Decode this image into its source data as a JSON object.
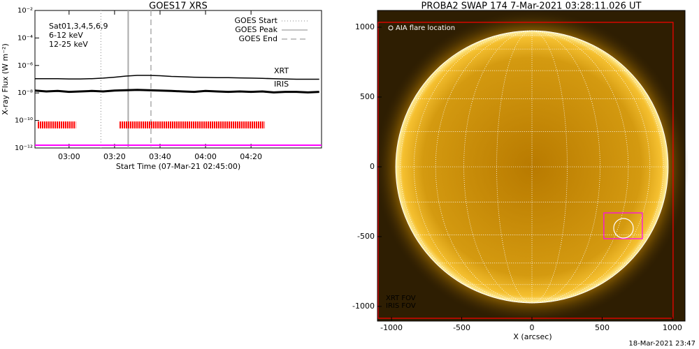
{
  "chart_data": [
    {
      "type": "goes-lightcurve",
      "title": "GOES17 XRS",
      "ylabel": "X-ray Flux (W m⁻²)",
      "xlabel": "Start Time (07-Mar-21 02:45:00)",
      "log_y": true,
      "ylim": [
        1e-12,
        0.01
      ],
      "yticks": [
        {
          "value": 1e-12,
          "label": "10⁻¹²"
        },
        {
          "value": 1e-10,
          "label": "10⁻¹⁰"
        },
        {
          "value": 1e-08,
          "label": "10⁻⁸"
        },
        {
          "value": 1e-06,
          "label": "10⁻⁶"
        },
        {
          "value": 0.0001,
          "label": "10⁻⁴"
        },
        {
          "value": 0.01,
          "label": "10⁻²"
        }
      ],
      "xlim": [
        "02:45",
        "04:51"
      ],
      "xticks": [
        "03:00",
        "03:20",
        "03:40",
        "04:00",
        "04:20"
      ],
      "x": [
        "02:45",
        "02:50",
        "02:55",
        "03:00",
        "03:05",
        "03:10",
        "03:15",
        "03:20",
        "03:25",
        "03:30",
        "03:35",
        "03:40",
        "03:45",
        "03:50",
        "03:55",
        "04:00",
        "04:05",
        "04:10",
        "04:15",
        "04:20",
        "04:25",
        "04:30",
        "04:35",
        "04:40",
        "04:45",
        "04:50"
      ],
      "series": [
        {
          "color": "#000000",
          "values": [
            1.1e-07,
            1.1e-07,
            1.1e-07,
            1.05e-07,
            1.05e-07,
            1.1e-07,
            1.2e-07,
            1.4e-07,
            1.7e-07,
            1.9e-07,
            1.9e-07,
            1.8e-07,
            1.6e-07,
            1.5e-07,
            1.4e-07,
            1.35e-07,
            1.3e-07,
            1.3e-07,
            1.25e-07,
            1.2e-07,
            1.15e-07,
            1.1e-07,
            1.05e-07,
            1e-07,
            1e-07,
            1e-07
          ]
        },
        {
          "color": "#000000",
          "values": [
            1.5e-08,
            1.3e-08,
            1.4e-08,
            1.2e-08,
            1.3e-08,
            1.4e-08,
            1.3e-08,
            1.5e-08,
            1.6e-08,
            1.7e-08,
            1.6e-08,
            1.5e-08,
            1.4e-08,
            1.3e-08,
            1.2e-08,
            1.4e-08,
            1.3e-08,
            1.2e-08,
            1.3e-08,
            1.2e-08,
            1.3e-08,
            1.1e-08,
            1.2e-08,
            1.2e-08,
            1.1e-08,
            1.2e-08
          ]
        }
      ],
      "channels": [
        {
          "label": "Sat01,3,4,5,6,9",
          "color": "#000000"
        },
        {
          "label": "6-12 keV",
          "color": "#ff00ff"
        },
        {
          "label": "12-25 keV",
          "color": "#00cc00"
        }
      ],
      "events": [
        {
          "name": "GOES Start",
          "time": "03:14",
          "style": "dotted"
        },
        {
          "name": "GOES Peak",
          "time": "03:26",
          "style": "solid"
        },
        {
          "name": "GOES End",
          "time": "03:36",
          "style": "dashed"
        }
      ],
      "xrt_coverage": [
        [
          "02:46",
          "03:03"
        ],
        [
          "03:22",
          "04:26"
        ]
      ],
      "annotations": [
        {
          "text": "XRT",
          "color": "#ff0000"
        },
        {
          "text": "IRIS",
          "color": "#ff00ff"
        }
      ]
    },
    {
      "type": "solar-image",
      "title": "PROBA2 SWAP 174  7-Mar-2021 03:28:11.026 UT",
      "xlabel": "X (arcsec)",
      "xlim": [
        -1100,
        1090
      ],
      "ylim": [
        -1105,
        1120
      ],
      "xticks": [
        -1000,
        -500,
        0,
        500,
        1000
      ],
      "yticks": [
        -1000,
        -500,
        0,
        500,
        1000
      ],
      "flare_label": "AIA flare location",
      "flare_location": {
        "x": 652,
        "y": -440
      },
      "fov": [
        {
          "name": "XRT FOV",
          "color": "#ff0000",
          "x": [
            -1095,
            1005
          ],
          "y": [
            -1085,
            1035
          ]
        },
        {
          "name": "IRIS FOV",
          "color": "#ff00ff",
          "x": [
            512,
            786
          ],
          "y": [
            -515,
            -330
          ]
        }
      ]
    }
  ],
  "footer": "18-Mar-2021 23:47"
}
